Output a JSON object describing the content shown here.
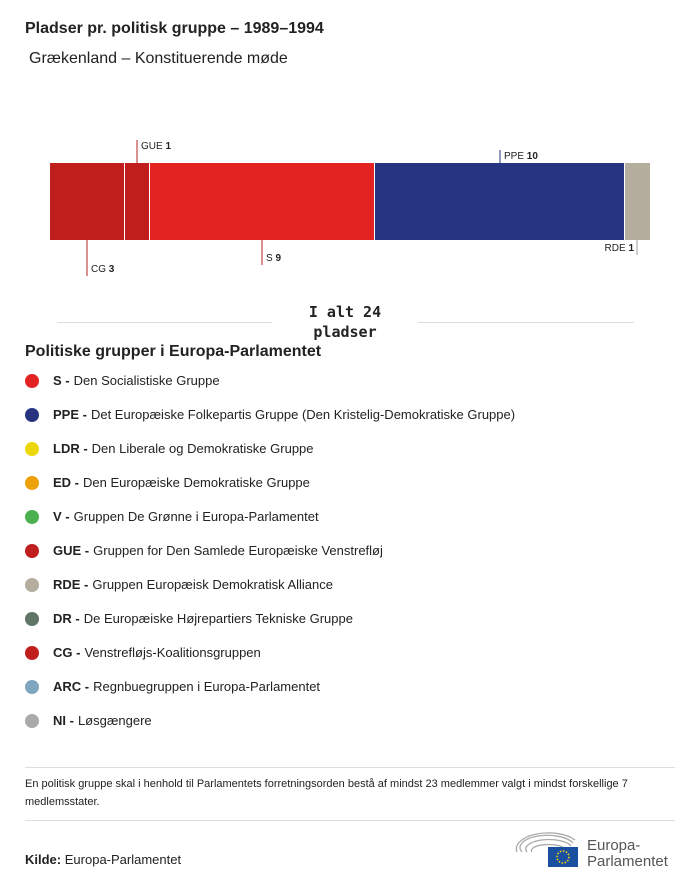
{
  "title": "Pladser pr. politisk gruppe – 1989–1994",
  "subtitle": "Grækenland – Konstituerende møde",
  "chart_data": {
    "type": "stacked-bar",
    "categories": [
      "CG",
      "GUE",
      "S",
      "PPE",
      "RDE"
    ],
    "values": [
      3,
      1,
      9,
      10,
      1
    ],
    "colors": [
      "#c01d1d",
      "#c01d1d",
      "#e32322",
      "#273580",
      "#b5ad9e"
    ],
    "label_positions": [
      "below",
      "above",
      "below",
      "above",
      "below"
    ]
  },
  "total": {
    "line1": "I alt 24",
    "line2": "pladser"
  },
  "legend_title": "Politiske grupper i Europa-Parlamentet",
  "legend": [
    {
      "abbr": "S -",
      "name": "Den Socialistiske Gruppe",
      "color": "#e32322"
    },
    {
      "abbr": "PPE -",
      "name": "Det Europæiske Folkepartis Gruppe (Den Kristelig-Demokratiske Gruppe)",
      "color": "#273580"
    },
    {
      "abbr": "LDR -",
      "name": "Den Liberale og Demokratiske Gruppe",
      "color": "#ecd80a"
    },
    {
      "abbr": "ED -",
      "name": "Den Europæiske Demokratiske Gruppe",
      "color": "#eea20a"
    },
    {
      "abbr": "V -",
      "name": "Gruppen De Grønne i Europa-Parlamentet",
      "color": "#4caf50"
    },
    {
      "abbr": "GUE -",
      "name": "Gruppen for Den Samlede Europæiske Venstrefløj",
      "color": "#c01d1d"
    },
    {
      "abbr": "RDE -",
      "name": "Gruppen Europæisk Demokratisk Alliance",
      "color": "#b5ad9e"
    },
    {
      "abbr": "DR -",
      "name": "De Europæiske Højrepartiers Tekniske Gruppe",
      "color": "#5e7568"
    },
    {
      "abbr": "CG -",
      "name": "Venstrefløjs-Koalitionsgruppen",
      "color": "#c01d1d"
    },
    {
      "abbr": "ARC -",
      "name": "Regnbuegruppen i Europa-Parlamentet",
      "color": "#7fa6bf"
    },
    {
      "abbr": "NI -",
      "name": "Løsgængere",
      "color": "#aaaaaa"
    }
  ],
  "note": "En politisk gruppe skal i henhold til Parlamentets forretningsorden bestå af mindst 23 medlemmer valgt i mindst forskellige 7 medlemsstater.",
  "source": {
    "label": "Kilde:",
    "value": "Europa-Parlamentet"
  },
  "logo": {
    "line1": "Europa-",
    "line2": "Parlamentet"
  }
}
